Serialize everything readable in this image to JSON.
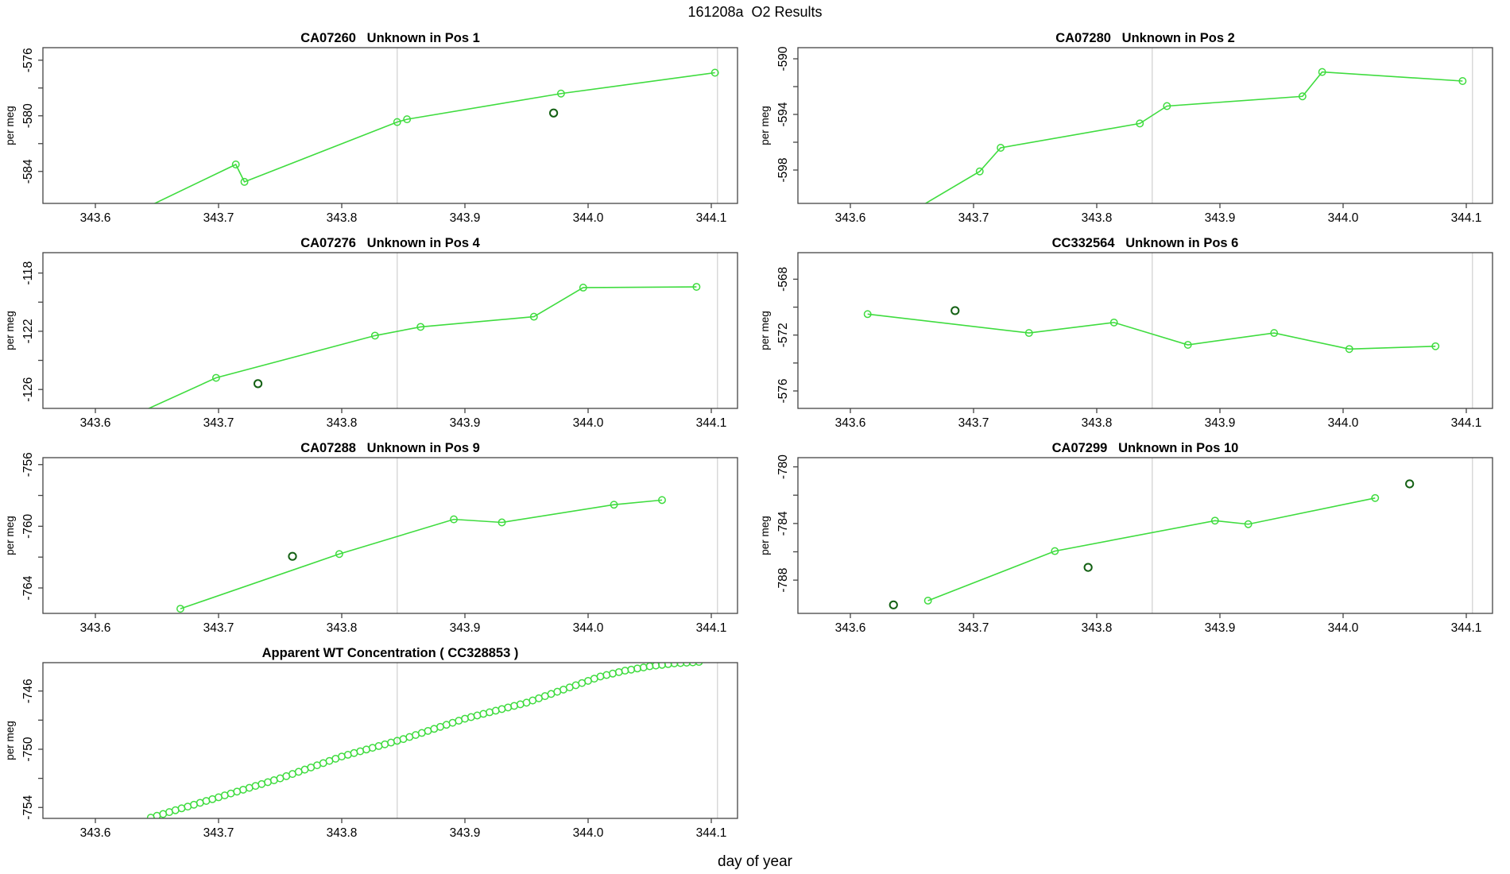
{
  "figure": {
    "title": "161208a  O2 Results",
    "xlabel": "day of year"
  },
  "colors": {
    "line": "#3fdc3f",
    "outlier": "#136013",
    "gridline": "#d8d8d8",
    "axis": "#444444",
    "text": "#000000",
    "background": "#ffffff"
  },
  "axes": {
    "xlim": [
      343.557,
      344.121
    ],
    "x_ticks": [
      343.6,
      343.7,
      343.8,
      343.9,
      344.0,
      344.1
    ],
    "x_tick_labels": [
      "343.6",
      "343.7",
      "343.8",
      "343.9",
      "344.0",
      "344.1"
    ],
    "gridlines_x": [
      343.845,
      344.105
    ],
    "ylabel": "per meg"
  },
  "chart_data": [
    {
      "type": "line",
      "title": "CA07260   Unknown in Pos 1",
      "ylabel": "per meg",
      "ylim": [
        -586.3,
        -575.1
      ],
      "yticks": [
        {
          "v": -576,
          "label": "-576"
        },
        {
          "v": -578,
          "label": ""
        },
        {
          "v": -580,
          "label": "-580"
        },
        {
          "v": -582,
          "label": ""
        },
        {
          "v": -584,
          "label": "-584"
        }
      ],
      "line": [
        [
          343.62,
          -587.5
        ],
        [
          343.714,
          -583.5
        ],
        [
          343.721,
          -584.75
        ],
        [
          343.845,
          -580.45
        ],
        [
          343.853,
          -580.25
        ],
        [
          343.978,
          -578.4
        ],
        [
          344.103,
          -576.9
        ]
      ],
      "outliers": [
        [
          343.972,
          -579.8
        ]
      ]
    },
    {
      "type": "line",
      "title": "CA07280   Unknown in Pos 2",
      "ylabel": "per meg",
      "ylim": [
        -600.4,
        -589.2
      ],
      "yticks": [
        {
          "v": -590,
          "label": "-590"
        },
        {
          "v": -592,
          "label": ""
        },
        {
          "v": -594,
          "label": "-594"
        },
        {
          "v": -596,
          "label": ""
        },
        {
          "v": -598,
          "label": "-598"
        }
      ],
      "line": [
        [
          343.64,
          -601.5
        ],
        [
          343.705,
          -598.1
        ],
        [
          343.722,
          -596.4
        ],
        [
          343.835,
          -594.65
        ],
        [
          343.857,
          -593.4
        ],
        [
          343.967,
          -592.7
        ],
        [
          343.983,
          -590.95
        ],
        [
          344.097,
          -591.6
        ]
      ],
      "outliers": []
    },
    {
      "type": "line",
      "title": "CA07276   Unknown in Pos 4",
      "ylabel": "per meg",
      "ylim": [
        -127.3,
        -116.6
      ],
      "yticks": [
        {
          "v": -118,
          "label": "-118"
        },
        {
          "v": -120,
          "label": ""
        },
        {
          "v": -122,
          "label": "-122"
        },
        {
          "v": -124,
          "label": ""
        },
        {
          "v": -126,
          "label": "-126"
        }
      ],
      "line": [
        [
          343.62,
          -128.2
        ],
        [
          343.698,
          -125.2
        ],
        [
          343.827,
          -122.3
        ],
        [
          343.864,
          -121.7
        ],
        [
          343.956,
          -121.0
        ],
        [
          343.996,
          -119.0
        ],
        [
          344.088,
          -118.95
        ]
      ],
      "outliers": [
        [
          343.732,
          -125.6
        ]
      ]
    },
    {
      "type": "line",
      "title": "CC332564   Unknown in Pos 6",
      "ylabel": "per meg",
      "ylim": [
        -577.25,
        -566.1
      ],
      "yticks": [
        {
          "v": -568,
          "label": "-568"
        },
        {
          "v": -570,
          "label": ""
        },
        {
          "v": -572,
          "label": "-572"
        },
        {
          "v": -574,
          "label": ""
        },
        {
          "v": -576,
          "label": "-576"
        }
      ],
      "line": [
        [
          343.614,
          -570.5
        ],
        [
          343.745,
          -571.85
        ],
        [
          343.814,
          -571.1
        ],
        [
          343.874,
          -572.7
        ],
        [
          343.944,
          -571.85
        ],
        [
          344.005,
          -573.0
        ],
        [
          344.075,
          -572.8
        ]
      ],
      "outliers": [
        [
          343.685,
          -570.25
        ]
      ]
    },
    {
      "type": "line",
      "title": "CA07288   Unknown in Pos 9",
      "ylabel": "per meg",
      "ylim": [
        -765.65,
        -755.55
      ],
      "yticks": [
        {
          "v": -756,
          "label": "-756"
        },
        {
          "v": -758,
          "label": ""
        },
        {
          "v": -760,
          "label": "-760"
        },
        {
          "v": -762,
          "label": ""
        },
        {
          "v": -764,
          "label": "-764"
        }
      ],
      "line": [
        [
          343.669,
          -765.35
        ],
        [
          343.798,
          -761.8
        ],
        [
          343.891,
          -759.55
        ],
        [
          343.93,
          -759.75
        ],
        [
          344.021,
          -758.6
        ],
        [
          344.06,
          -758.3
        ]
      ],
      "outliers": [
        [
          343.76,
          -761.95
        ]
      ]
    },
    {
      "type": "line",
      "title": "CA07299   Unknown in Pos 10",
      "ylabel": "per meg",
      "ylim": [
        -790.35,
        -779.35
      ],
      "yticks": [
        {
          "v": -780,
          "label": "-780"
        },
        {
          "v": -782,
          "label": ""
        },
        {
          "v": -784,
          "label": "-784"
        },
        {
          "v": -786,
          "label": ""
        },
        {
          "v": -788,
          "label": "-788"
        }
      ],
      "line": [
        [
          343.663,
          -789.45
        ],
        [
          343.766,
          -785.95
        ],
        [
          343.896,
          -783.8
        ],
        [
          343.923,
          -784.05
        ],
        [
          344.026,
          -782.2
        ]
      ],
      "outliers": [
        [
          343.635,
          -789.75
        ],
        [
          343.793,
          -787.1
        ],
        [
          344.054,
          -781.2
        ]
      ]
    },
    {
      "type": "scatter",
      "title": "Apparent WT Concentration ( CC328853 )",
      "ylabel": "per meg",
      "ylim": [
        -754.75,
        -744.05
      ],
      "yticks": [
        {
          "v": -746,
          "label": "-746"
        },
        {
          "v": -748,
          "label": ""
        },
        {
          "v": -750,
          "label": "-750"
        },
        {
          "v": -752,
          "label": ""
        },
        {
          "v": -754,
          "label": "-754"
        }
      ],
      "points": [
        [
          343.645,
          -754.7
        ],
        [
          343.65,
          -754.57
        ],
        [
          343.655,
          -754.45
        ],
        [
          343.66,
          -754.32
        ],
        [
          343.665,
          -754.19
        ],
        [
          343.67,
          -754.06
        ],
        [
          343.675,
          -753.94
        ],
        [
          343.68,
          -753.81
        ],
        [
          343.685,
          -753.68
        ],
        [
          343.69,
          -753.55
        ],
        [
          343.695,
          -753.43
        ],
        [
          343.7,
          -753.3
        ],
        [
          343.705,
          -753.17
        ],
        [
          343.71,
          -753.04
        ],
        [
          343.715,
          -752.91
        ],
        [
          343.72,
          -752.78
        ],
        [
          343.725,
          -752.65
        ],
        [
          343.73,
          -752.52
        ],
        [
          343.735,
          -752.39
        ],
        [
          343.74,
          -752.26
        ],
        [
          343.745,
          -752.13
        ],
        [
          343.75,
          -752.0
        ],
        [
          343.755,
          -751.85
        ],
        [
          343.76,
          -751.7
        ],
        [
          343.765,
          -751.55
        ],
        [
          343.77,
          -751.4
        ],
        [
          343.775,
          -751.25
        ],
        [
          343.78,
          -751.1
        ],
        [
          343.785,
          -750.95
        ],
        [
          343.79,
          -750.8
        ],
        [
          343.795,
          -750.65
        ],
        [
          343.8,
          -750.5
        ],
        [
          343.805,
          -750.38
        ],
        [
          343.81,
          -750.26
        ],
        [
          343.815,
          -750.14
        ],
        [
          343.82,
          -750.02
        ],
        [
          343.825,
          -749.9
        ],
        [
          343.83,
          -749.78
        ],
        [
          343.835,
          -749.66
        ],
        [
          343.84,
          -749.54
        ],
        [
          343.845,
          -749.42
        ],
        [
          343.85,
          -749.3
        ],
        [
          343.855,
          -749.16
        ],
        [
          343.86,
          -749.02
        ],
        [
          343.865,
          -748.88
        ],
        [
          343.87,
          -748.74
        ],
        [
          343.875,
          -748.6
        ],
        [
          343.88,
          -748.46
        ],
        [
          343.885,
          -748.32
        ],
        [
          343.89,
          -748.18
        ],
        [
          343.895,
          -748.04
        ],
        [
          343.9,
          -747.9
        ],
        [
          343.905,
          -747.79
        ],
        [
          343.91,
          -747.68
        ],
        [
          343.915,
          -747.57
        ],
        [
          343.92,
          -747.46
        ],
        [
          343.925,
          -747.35
        ],
        [
          343.93,
          -747.24
        ],
        [
          343.935,
          -747.13
        ],
        [
          343.94,
          -747.02
        ],
        [
          343.945,
          -746.91
        ],
        [
          343.95,
          -746.8
        ],
        [
          343.955,
          -746.65
        ],
        [
          343.96,
          -746.5
        ],
        [
          343.965,
          -746.35
        ],
        [
          343.97,
          -746.2
        ],
        [
          343.975,
          -746.05
        ],
        [
          343.98,
          -745.9
        ],
        [
          343.985,
          -745.75
        ],
        [
          343.99,
          -745.6
        ],
        [
          343.995,
          -745.45
        ],
        [
          344.0,
          -745.3
        ],
        [
          344.005,
          -745.15
        ],
        [
          344.01,
          -745.0
        ],
        [
          344.015,
          -744.9
        ],
        [
          344.02,
          -744.8
        ],
        [
          344.025,
          -744.7
        ],
        [
          344.03,
          -744.6
        ],
        [
          344.035,
          -744.53
        ],
        [
          344.04,
          -744.45
        ],
        [
          344.045,
          -744.38
        ],
        [
          344.05,
          -744.3
        ],
        [
          344.055,
          -744.25
        ],
        [
          344.06,
          -744.2
        ],
        [
          344.065,
          -744.15
        ],
        [
          344.07,
          -744.1
        ],
        [
          344.075,
          -744.08
        ],
        [
          344.08,
          -744.05
        ],
        [
          344.085,
          -744.03
        ],
        [
          344.09,
          -744.0
        ]
      ],
      "outliers": []
    }
  ]
}
